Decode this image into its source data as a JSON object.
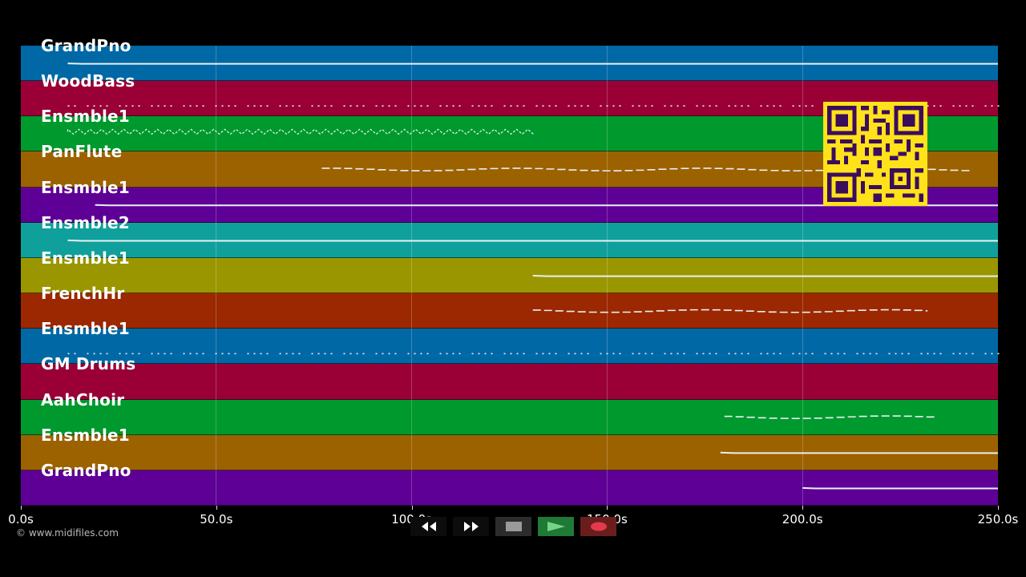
{
  "tracks": [
    {
      "name": "GrandPno",
      "color": "#0068a5",
      "line": "solid",
      "x_start": 12,
      "x_end": 250
    },
    {
      "name": "WoodBass",
      "color": "#9a0036",
      "line": "dots",
      "x_start": 12,
      "x_end": 250
    },
    {
      "name": "Ensmble1",
      "color": "#00992e",
      "line": "zigzag",
      "x_start": 12,
      "x_end": 132
    },
    {
      "name": "PanFlute",
      "color": "#9c6200",
      "line": "dashed",
      "x_start": 77,
      "x_end": 243
    },
    {
      "name": "Ensmble1",
      "color": "#5e0096",
      "line": "solid",
      "x_start": 19,
      "x_end": 250
    },
    {
      "name": "Ensmble2",
      "color": "#0fa09c",
      "line": "solid",
      "x_start": 12,
      "x_end": 250
    },
    {
      "name": "Ensmble1",
      "color": "#9a9600",
      "line": "solid",
      "x_start": 131,
      "x_end": 250
    },
    {
      "name": "FrenchHr",
      "color": "#9b2800",
      "line": "dashed",
      "x_start": 131,
      "x_end": 232
    },
    {
      "name": "Ensmble1",
      "color": "#0068a5",
      "line": "dots",
      "x_start": 12,
      "x_end": 250
    },
    {
      "name": "GM Drums",
      "color": "#9a0036",
      "line": "none",
      "x_start": 0,
      "x_end": 0
    },
    {
      "name": "AahChoir",
      "color": "#00992e",
      "line": "dashed",
      "x_start": 180,
      "x_end": 234
    },
    {
      "name": "Ensmble1",
      "color": "#9c6200",
      "line": "solid",
      "x_start": 179,
      "x_end": 250
    },
    {
      "name": "GrandPno",
      "color": "#5e0096",
      "line": "solid",
      "x_start": 200,
      "x_end": 250
    }
  ],
  "timeline": {
    "min": 0,
    "max": 250,
    "ticks": [
      "0.0s",
      "50.0s",
      "100.0s",
      "150.0s",
      "200.0s",
      "250.0s"
    ],
    "tick_values": [
      0,
      50,
      100,
      150,
      200,
      250
    ]
  },
  "copyright": "© www.midifiles.com",
  "controls": [
    {
      "name": "rewind-button",
      "icon": "rewind-icon"
    },
    {
      "name": "fast-forward-button",
      "icon": "fast-forward-icon"
    },
    {
      "name": "stop-button",
      "icon": "stop-icon"
    },
    {
      "name": "play-button",
      "icon": "play-icon"
    },
    {
      "name": "record-button",
      "icon": "record-icon"
    }
  ],
  "colors": {
    "background": "#000000",
    "qr_bg": "#ffe21a",
    "qr_fg": "#3b0d5c",
    "play_bg": "#1f7a36",
    "record_bg": "#6b1d1d"
  }
}
